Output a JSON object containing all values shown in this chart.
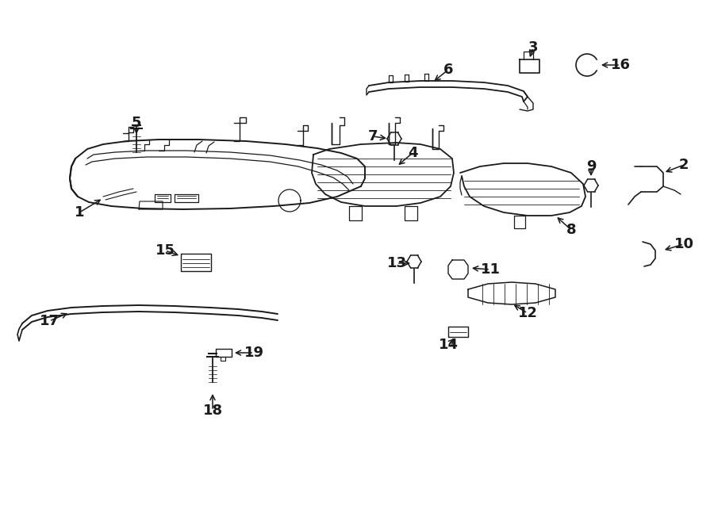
{
  "background": "#ffffff",
  "line_color": "#1a1a1a",
  "fig_width": 9.0,
  "fig_height": 6.61,
  "dpi": 100
}
